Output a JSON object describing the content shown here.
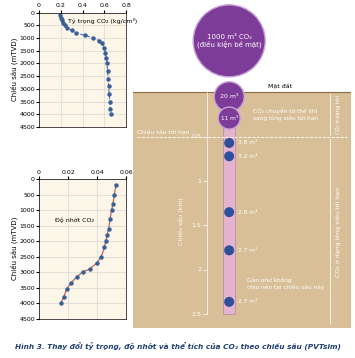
{
  "chart_data": [
    {
      "type": "line",
      "annotation": "Tỷ trọng CO₂ (kg/cm³)",
      "y_label": "Chiều sâu (mTVD)",
      "x": [
        0.19,
        0.2,
        0.21,
        0.22,
        0.24,
        0.26,
        0.3,
        0.34,
        0.42,
        0.5,
        0.55,
        0.58,
        0.6,
        0.61,
        0.62,
        0.625,
        0.63,
        0.635,
        0.64,
        0.645,
        0.65,
        0.655,
        0.66
      ],
      "y": [
        100,
        200,
        300,
        400,
        500,
        600,
        700,
        800,
        900,
        1000,
        1100,
        1200,
        1400,
        1600,
        1800,
        2000,
        2300,
        2600,
        2900,
        3200,
        3500,
        3800,
        4000
      ],
      "xlim": [
        0,
        0.8
      ],
      "xticks": [
        0,
        0.2,
        0.4,
        0.6,
        0.8
      ],
      "ylim": [
        4500,
        0
      ],
      "yticks": [
        0,
        500,
        1000,
        1500,
        2000,
        2500,
        3000,
        3500,
        4000,
        4500
      ],
      "grid": true,
      "color": "#4a6fa5",
      "marker": "o",
      "line_style": "dashed"
    },
    {
      "type": "line",
      "annotation": "Độ nhớt CO₂",
      "y_label": "Chiều sâu (mTVD)",
      "x": [
        0.053,
        0.052,
        0.051,
        0.05,
        0.049,
        0.048,
        0.047,
        0.046,
        0.045,
        0.043,
        0.04,
        0.035,
        0.03,
        0.026,
        0.022,
        0.019,
        0.017,
        0.015
      ],
      "y": [
        200,
        500,
        800,
        1000,
        1300,
        1600,
        1800,
        2000,
        2200,
        2500,
        2700,
        2900,
        3000,
        3150,
        3350,
        3550,
        3800,
        4000
      ],
      "xlim": [
        0,
        0.06
      ],
      "xticks": [
        0,
        0.02,
        0.04,
        0.06
      ],
      "ylim": [
        4500,
        0
      ],
      "yticks": [
        0,
        500,
        1000,
        1500,
        2000,
        2500,
        3000,
        3500,
        4000,
        4500
      ],
      "grid": true,
      "color": "#c0504d",
      "marker": "o",
      "line_style": "solid"
    }
  ],
  "diagram": {
    "ylim": [
      2.65,
      -1.0
    ],
    "balloons": [
      {
        "label": "1000 m³ CO₂\n(điều kiện bề mặt)",
        "depth": -0.58
      },
      {
        "label": "20 m³",
        "depth": 0.05
      },
      {
        "label": "11 m³",
        "depth": 0.29
      }
    ],
    "pipe_bubbles": [
      {
        "label": "3.8 m³",
        "depth": 0.57
      },
      {
        "label": "3.2 m³",
        "depth": 0.72
      },
      {
        "label": "2.8 m³",
        "depth": 1.35
      },
      {
        "label": "2.7 m³",
        "depth": 1.78
      },
      {
        "label": "2.7 m³",
        "depth": 2.36
      }
    ],
    "pipe_bottom": 2.5,
    "ground_label": "Mặt đất",
    "transition_label": "CO₂ chuyển từ thể khí\nsang lỏng siêu tới hạn",
    "critical_depth": 0.5,
    "critical_depth_label": "Chiều sâu tới hạn",
    "incompressible_label": "Gần như không\nchịu nén tại chiều sâu này",
    "incompressible_depth": 2.15,
    "depth_axis_label": "Chiều sâu (km)",
    "depth_ticks": [
      0.5,
      1,
      1.5,
      2,
      2.5
    ],
    "gas_zone_label": "CO₂ ở dạng khí",
    "supercritical_zone_label": "CO₂ ở dạng lỏng siêu tới hạn"
  },
  "caption": "Hình 3. Thay đổi tỷ trọng, độ nhớt và thể tích của CO₂ theo chiều sâu (PVTsim)"
}
